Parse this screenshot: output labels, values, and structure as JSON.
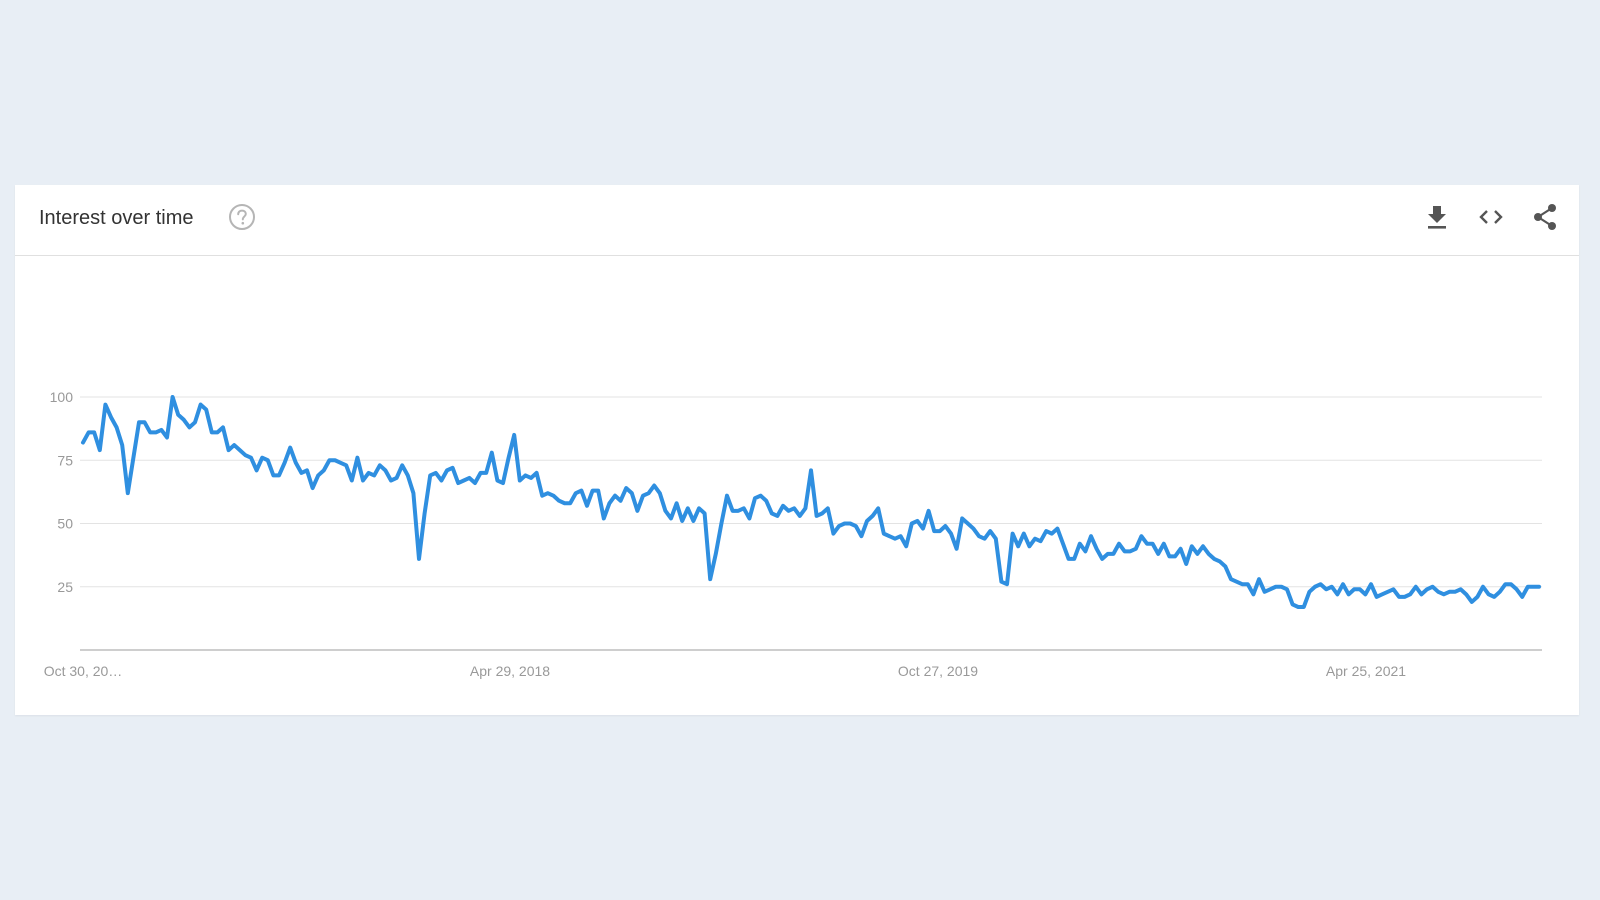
{
  "card": {
    "title": "Interest over time"
  },
  "icons": {
    "help": "help-circle-icon",
    "download": "download-icon",
    "embed": "code-embed-icon",
    "share": "share-icon"
  },
  "colors": {
    "line": "#2f8fe0",
    "grid": "#e3e3e3",
    "axis": "#9e9e9e",
    "tick_text": "#999999",
    "page_bg": "#e8eef5"
  },
  "chart_data": {
    "type": "line",
    "title": "",
    "xlabel": "",
    "ylabel": "",
    "ylim": [
      0,
      100
    ],
    "y_ticks": [
      25,
      50,
      75,
      100
    ],
    "x_tick_labels": [
      "Oct 30, 20…",
      "Apr 29, 2018",
      "Oct 27, 2019",
      "Apr 25, 2021"
    ],
    "grid": true,
    "series": [
      {
        "values": [
          82,
          86,
          86,
          79,
          97,
          92,
          88,
          81,
          62,
          76,
          90,
          90,
          86,
          86,
          87,
          84,
          100,
          93,
          91,
          88,
          90,
          97,
          95,
          86,
          86,
          88,
          79,
          81,
          79,
          77,
          76,
          71,
          76,
          75,
          69,
          69,
          74,
          80,
          74,
          70,
          71,
          64,
          69,
          71,
          75,
          75,
          74,
          73,
          67,
          76,
          67,
          70,
          69,
          73,
          71,
          67,
          68,
          73,
          69,
          62,
          36,
          54,
          69,
          70,
          67,
          71,
          72,
          66,
          67,
          68,
          66,
          70,
          70,
          78,
          67,
          66,
          76,
          85,
          67,
          69,
          68,
          70,
          61,
          62,
          61,
          59,
          58,
          58,
          62,
          63,
          57,
          63,
          63,
          52,
          58,
          61,
          59,
          64,
          62,
          55,
          61,
          62,
          65,
          62,
          55,
          52,
          58,
          51,
          56,
          51,
          56,
          54,
          28,
          38,
          50,
          61,
          55,
          55,
          56,
          52,
          60,
          61,
          59,
          54,
          53,
          57,
          55,
          56,
          53,
          56,
          71,
          53,
          54,
          56,
          46,
          49,
          50,
          50,
          49,
          45,
          51,
          53,
          56,
          46,
          45,
          44,
          45,
          41,
          50,
          51,
          48,
          55,
          47,
          47,
          49,
          46,
          40,
          52,
          50,
          48,
          45,
          44,
          47,
          44,
          27,
          26,
          46,
          41,
          46,
          41,
          44,
          43,
          47,
          46,
          48,
          42,
          36,
          36,
          42,
          39,
          45,
          40,
          36,
          38,
          38,
          42,
          39,
          39,
          40,
          45,
          42,
          42,
          38,
          42,
          37,
          37,
          40,
          34,
          41,
          38,
          41,
          38,
          36,
          35,
          33,
          28,
          27,
          26,
          26,
          22,
          28,
          23,
          24,
          25,
          25,
          24,
          18,
          17,
          17,
          23,
          25,
          26,
          24,
          25,
          22,
          26,
          22,
          24,
          24,
          22,
          26,
          21,
          22,
          23,
          24,
          21,
          21,
          22,
          25,
          22,
          24,
          25,
          23,
          22,
          23,
          23,
          24,
          22,
          19,
          21,
          25,
          22,
          21,
          23,
          26,
          26,
          24,
          21,
          25,
          25,
          25
        ]
      }
    ]
  }
}
